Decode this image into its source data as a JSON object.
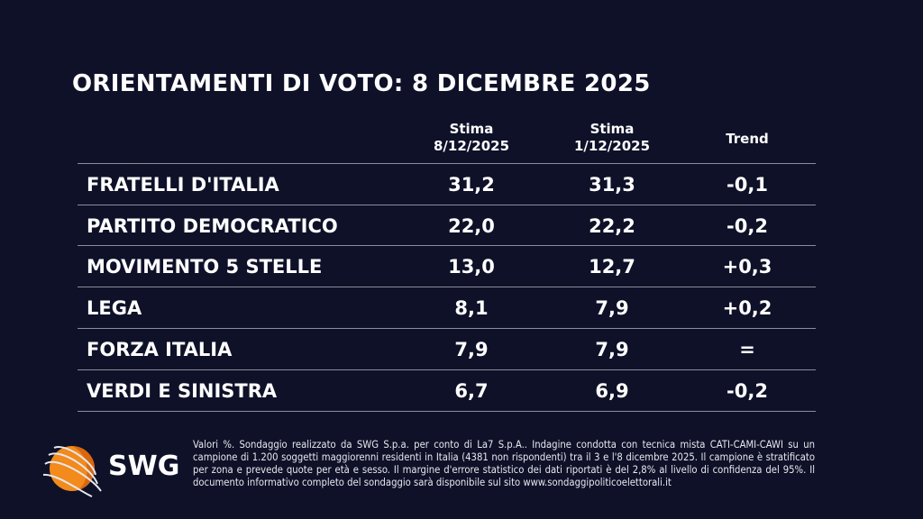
{
  "title": "ORIENTAMENTI DI VOTO: 8 DICEMBRE 2025",
  "headers": {
    "col1": [
      "Stima",
      "8/12/2025"
    ],
    "col2": [
      "Stima",
      "1/12/2025"
    ],
    "trend": "Trend"
  },
  "rows": [
    {
      "party": "FRATELLI D'ITALIA",
      "current": "31,2",
      "previous": "31,3",
      "trend": "-0,1"
    },
    {
      "party": "PARTITO DEMOCRATICO",
      "current": "22,0",
      "previous": "22,2",
      "trend": "-0,2"
    },
    {
      "party": "MOVIMENTO 5 STELLE",
      "current": "13,0",
      "previous": "12,7",
      "trend": "+0,3"
    },
    {
      "party": "LEGA",
      "current": "8,1",
      "previous": "7,9",
      "trend": "+0,2"
    },
    {
      "party": "FORZA ITALIA",
      "current": "7,9",
      "previous": "7,9",
      "trend": "="
    },
    {
      "party": "VERDI E SINISTRA",
      "current": "6,7",
      "previous": "6,9",
      "trend": "-0,2"
    }
  ],
  "logo": {
    "text": "SWG",
    "colors": {
      "orange": "#f28a1c",
      "background": "#0e1128"
    }
  },
  "note": "Valori %. Sondaggio realizzato da SWG S.p.a. per conto di La7 S.p.A.. Indagine condotta con tecnica mista CATI-CAMI-CAWI su un campione di 1.200 soggetti maggiorenni residenti in Italia (4381 non rispondenti) tra il 3 e l'8 dicembre 2025. Il campione è stratificato per zona e prevede quote per età e sesso. Il margine d'errore statistico dei dati riportati è del 2,8% al livello di confidenza del 95%. Il documento informativo completo del sondaggio sarà disponibile sul sito www.sondaggipoliticoelettorali.it"
}
